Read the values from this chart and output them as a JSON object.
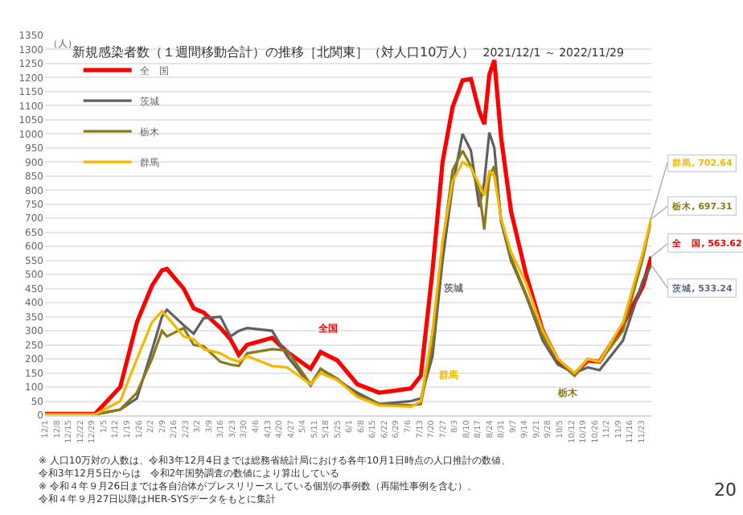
{
  "chart_data": {
    "type": "line",
    "title": "新規感染者数（１週間移動合計）の推移［北関東］（対人口10万人）",
    "subtitle": "2021/12/1 ～ 2022/11/29",
    "ylabel": "（人）",
    "x": [
      "2021-12-01",
      "2021-12-31",
      "2022-01-15",
      "2022-01-25",
      "2022-02-03",
      "2022-02-09",
      "2022-02-12",
      "2022-02-22",
      "2022-02-28",
      "2022-03-06",
      "2022-03-16",
      "2022-03-22",
      "2022-03-27",
      "2022-04-01",
      "2022-04-16",
      "2022-04-25",
      "2022-05-09",
      "2022-05-15",
      "2022-05-25",
      "2022-06-06",
      "2022-06-19",
      "2022-07-08",
      "2022-07-14",
      "2022-07-21",
      "2022-07-27",
      "2022-08-02",
      "2022-08-08",
      "2022-08-13",
      "2022-08-18",
      "2022-08-21",
      "2022-08-24",
      "2022-08-27",
      "2022-08-31",
      "2022-09-06",
      "2022-09-15",
      "2022-09-25",
      "2022-10-04",
      "2022-10-14",
      "2022-10-22",
      "2022-10-29",
      "2022-11-12",
      "2022-11-24",
      "2022-11-29"
    ],
    "series": [
      {
        "name": "全　国",
        "color": "#ff0000",
        "values": [
          5,
          5,
          100,
          330,
          460,
          515,
          520,
          450,
          380,
          365,
          310,
          270,
          215,
          250,
          275,
          225,
          165,
          225,
          195,
          110,
          80,
          95,
          140,
          515,
          900,
          1095,
          1190,
          1195,
          1080,
          1035,
          1210,
          1262,
          990,
          725,
          500,
          300,
          195,
          145,
          195,
          190,
          320,
          460,
          563.62
        ],
        "value_labels": [
          null,
          null,
          null,
          null,
          null,
          null,
          null,
          null,
          null,
          null,
          null,
          null,
          null,
          null,
          null,
          null,
          null,
          null,
          null,
          null,
          null,
          null,
          null,
          null,
          null,
          null,
          null,
          null,
          null,
          null,
          null,
          null,
          null,
          null,
          null,
          null,
          null,
          null,
          null,
          null,
          null,
          null,
          "全　国, 563.62"
        ]
      },
      {
        "name": "茨城",
        "color": "#606060",
        "values": [
          3,
          3,
          20,
          60,
          230,
          350,
          375,
          320,
          290,
          345,
          350,
          280,
          300,
          310,
          300,
          210,
          105,
          165,
          125,
          80,
          40,
          50,
          60,
          210,
          550,
          815,
          1000,
          940,
          740,
          830,
          1005,
          950,
          690,
          550,
          425,
          265,
          180,
          150,
          170,
          160,
          265,
          480,
          533.24
        ],
        "value_labels": [
          null,
          null,
          null,
          null,
          null,
          null,
          null,
          null,
          null,
          null,
          null,
          null,
          null,
          null,
          null,
          null,
          null,
          null,
          null,
          null,
          null,
          null,
          null,
          null,
          null,
          null,
          null,
          null,
          null,
          null,
          null,
          null,
          null,
          null,
          null,
          null,
          null,
          null,
          null,
          null,
          null,
          null,
          "茨城, 533.24"
        ]
      },
      {
        "name": "栃木",
        "color": "#8b7a1a",
        "values": [
          3,
          3,
          20,
          80,
          200,
          300,
          280,
          310,
          250,
          245,
          190,
          180,
          175,
          220,
          235,
          230,
          110,
          165,
          130,
          70,
          40,
          35,
          40,
          250,
          600,
          870,
          940,
          885,
          795,
          660,
          850,
          885,
          700,
          560,
          430,
          280,
          200,
          140,
          200,
          190,
          300,
          560,
          697.31
        ],
        "value_labels": [
          null,
          null,
          null,
          null,
          null,
          null,
          null,
          null,
          null,
          null,
          null,
          null,
          null,
          null,
          null,
          null,
          null,
          null,
          null,
          null,
          null,
          null,
          null,
          null,
          null,
          null,
          null,
          null,
          null,
          null,
          null,
          null,
          null,
          null,
          null,
          null,
          null,
          null,
          null,
          null,
          null,
          null,
          "栃木, 697.31"
        ]
      },
      {
        "name": "群馬",
        "color": "#f5b800",
        "values": [
          3,
          3,
          50,
          200,
          330,
          370,
          350,
          280,
          270,
          235,
          220,
          200,
          190,
          210,
          175,
          170,
          110,
          150,
          125,
          65,
          35,
          30,
          50,
          300,
          620,
          830,
          900,
          880,
          820,
          780,
          870,
          850,
          700,
          580,
          470,
          300,
          200,
          150,
          200,
          190,
          330,
          580,
          702.64
        ],
        "value_labels": [
          null,
          null,
          null,
          null,
          null,
          null,
          null,
          null,
          null,
          null,
          null,
          null,
          null,
          null,
          null,
          null,
          null,
          null,
          null,
          null,
          null,
          null,
          null,
          null,
          null,
          null,
          null,
          null,
          null,
          null,
          null,
          null,
          null,
          null,
          null,
          null,
          null,
          null,
          null,
          null,
          null,
          null,
          "群馬, 702.64"
        ]
      }
    ],
    "xlim": [
      "2021-12-01",
      "2022-11-29"
    ],
    "ylim": [
      0,
      1350
    ],
    "yticks": [
      0,
      50,
      100,
      150,
      200,
      250,
      300,
      350,
      400,
      450,
      500,
      550,
      600,
      650,
      700,
      750,
      800,
      850,
      900,
      950,
      1000,
      1050,
      1100,
      1150,
      1200,
      1250,
      1300,
      1350
    ],
    "xticks": [
      {
        "value": "2021-12-01",
        "label": "12/1"
      },
      {
        "value": "2021-12-08",
        "label": "12/8"
      },
      {
        "value": "2021-12-15",
        "label": "12/15"
      },
      {
        "value": "2021-12-22",
        "label": "12/22"
      },
      {
        "value": "2021-12-29",
        "label": "12/29"
      },
      {
        "value": "2022-01-05",
        "label": "1/5"
      },
      {
        "value": "2022-01-12",
        "label": "1/12"
      },
      {
        "value": "2022-01-19",
        "label": "1/19"
      },
      {
        "value": "2022-01-26",
        "label": "1/26"
      },
      {
        "value": "2022-02-02",
        "label": "2/2"
      },
      {
        "value": "2022-02-09",
        "label": "2/9"
      },
      {
        "value": "2022-02-16",
        "label": "2/16"
      },
      {
        "value": "2022-02-23",
        "label": "2/23"
      },
      {
        "value": "2022-03-02",
        "label": "3/2"
      },
      {
        "value": "2022-03-09",
        "label": "3/9"
      },
      {
        "value": "2022-03-16",
        "label": "3/16"
      },
      {
        "value": "2022-03-23",
        "label": "3/23"
      },
      {
        "value": "2022-03-30",
        "label": "3/30"
      },
      {
        "value": "2022-04-06",
        "label": "4/6"
      },
      {
        "value": "2022-04-13",
        "label": "4/13"
      },
      {
        "value": "2022-04-20",
        "label": "4/20"
      },
      {
        "value": "2022-04-27",
        "label": "4/27"
      },
      {
        "value": "2022-05-04",
        "label": "5/4"
      },
      {
        "value": "2022-05-11",
        "label": "5/11"
      },
      {
        "value": "2022-05-18",
        "label": "5/18"
      },
      {
        "value": "2022-05-25",
        "label": "5/25"
      },
      {
        "value": "2022-06-01",
        "label": "6/1"
      },
      {
        "value": "2022-06-08",
        "label": "6/8"
      },
      {
        "value": "2022-06-15",
        "label": "6/15"
      },
      {
        "value": "2022-06-22",
        "label": "6/22"
      },
      {
        "value": "2022-06-29",
        "label": "6/29"
      },
      {
        "value": "2022-07-06",
        "label": "7/6"
      },
      {
        "value": "2022-07-13",
        "label": "7/13"
      },
      {
        "value": "2022-07-20",
        "label": "7/20"
      },
      {
        "value": "2022-07-27",
        "label": "7/27"
      },
      {
        "value": "2022-08-03",
        "label": "8/3"
      },
      {
        "value": "2022-08-10",
        "label": "8/10"
      },
      {
        "value": "2022-08-17",
        "label": "8/17"
      },
      {
        "value": "2022-08-24",
        "label": "8/24"
      },
      {
        "value": "2022-08-31",
        "label": "8/31"
      },
      {
        "value": "2022-09-07",
        "label": "9/7"
      },
      {
        "value": "2022-09-14",
        "label": "9/14"
      },
      {
        "value": "2022-09-21",
        "label": "9/21"
      },
      {
        "value": "2022-09-28",
        "label": "9/28"
      },
      {
        "value": "2022-10-05",
        "label": "10/5"
      },
      {
        "value": "2022-10-12",
        "label": "10/12"
      },
      {
        "value": "2022-10-19",
        "label": "10/19"
      },
      {
        "value": "2022-10-26",
        "label": "10/26"
      },
      {
        "value": "2022-11-02",
        "label": "11/2"
      },
      {
        "value": "2022-11-09",
        "label": "11/9"
      },
      {
        "value": "2022-11-16",
        "label": "11/16"
      },
      {
        "value": "2022-11-23",
        "label": "11/23"
      }
    ],
    "grid": "y",
    "legend": "top left",
    "marker": "none",
    "line_style": "solid",
    "annotations": [
      "全国",
      "茨城",
      "群馬",
      "栃木",
      "※ 人口10万対の人数は、令和3年12月4日までは総務省統計局における各年10月1日時点の人口推計の数値、令和3年12月5日からは　令和2年国勢調査の数値により算出している",
      "※ 令和４年９月26日までは各自治体がプレスリリースしている個別の事例数（再陽性事例を含む）、令和４年９月27日以降はHER-SYSデータをもとに集計",
      "20"
    ]
  }
}
